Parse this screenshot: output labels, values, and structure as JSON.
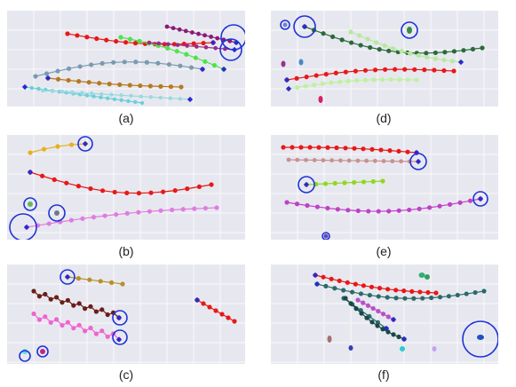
{
  "colors": {
    "panel_bg": "#e7e8ef",
    "grid": "#f8f8fb",
    "circle": "#1e32d8"
  },
  "panels": [
    {
      "id": "a",
      "caption": "(a)"
    },
    {
      "id": "b",
      "caption": "(b)"
    },
    {
      "id": "c",
      "caption": "(c)"
    },
    {
      "id": "d",
      "caption": "(d)"
    },
    {
      "id": "e",
      "caption": "(e)"
    },
    {
      "id": "f",
      "caption": "(f)"
    }
  ]
}
